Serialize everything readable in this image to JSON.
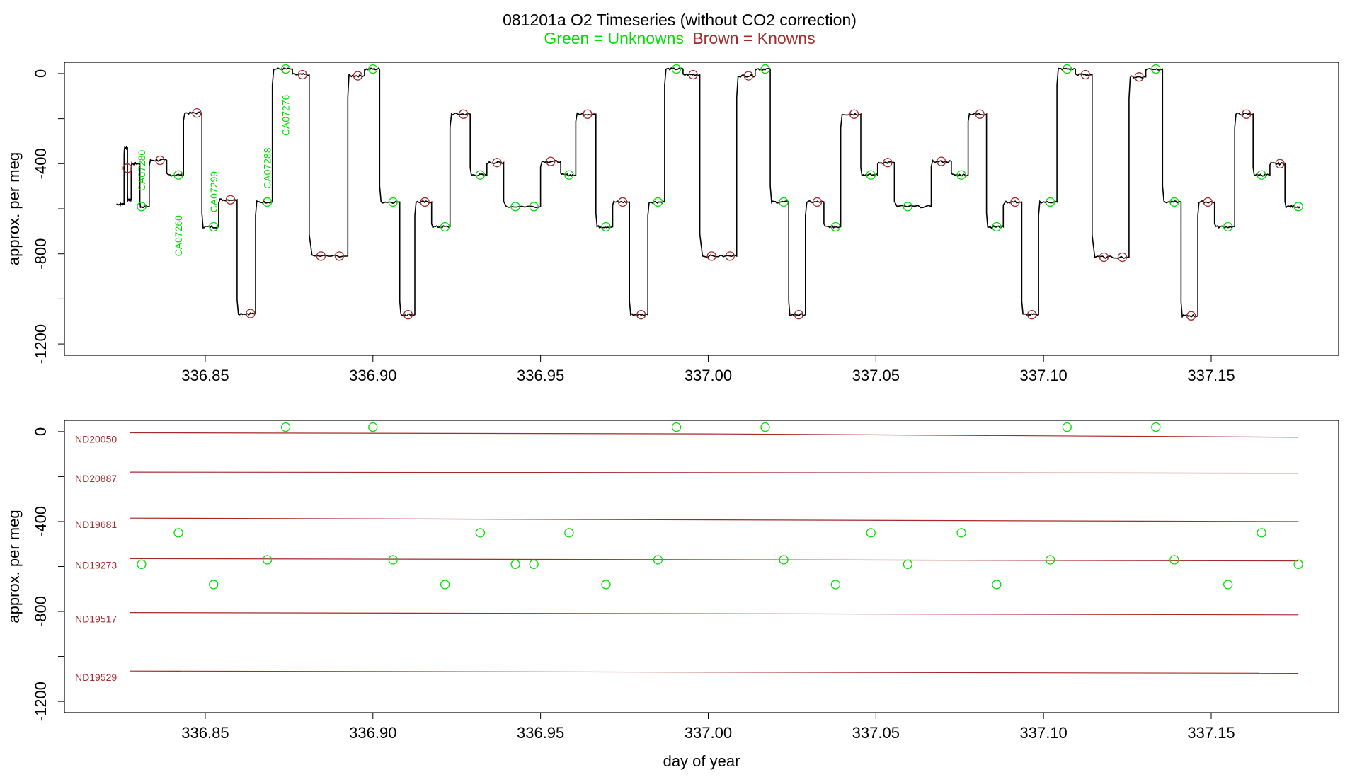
{
  "figure": {
    "title": "081201a   O2 Timeseries (without CO2 correction)",
    "legend_green": "Green = Unknowns",
    "legend_brown": "Brown = Knowns",
    "colors": {
      "unknown": "#00e000",
      "known": "#a52a2a",
      "trace": "#000000"
    }
  },
  "chart_data": [
    {
      "type": "line",
      "panel": "timeseries",
      "title": "081201a   O2 Timeseries (without CO2 correction)",
      "xlabel": "",
      "ylabel": "approx. per meg",
      "xlim": [
        336.808,
        337.188
      ],
      "ylim": [
        -1250,
        50
      ],
      "xticks": [
        "336.85",
        "336.90",
        "336.95",
        "337.00",
        "337.05",
        "337.10",
        "337.15"
      ],
      "yticks": [
        "0",
        "-400",
        "-800",
        "-1200"
      ],
      "grid": false,
      "legend": "top-center",
      "trace_segments": [
        {
          "t0": 336.8235,
          "t1": 336.8258,
          "level": -580
        },
        {
          "t0": 336.8258,
          "t1": 336.8268,
          "level": -330
        },
        {
          "t0": 336.8268,
          "t1": 336.8279,
          "level": -560
        },
        {
          "t0": 336.8279,
          "t1": 336.8305,
          "level": -400
        },
        {
          "t0": 336.8305,
          "t1": 336.8333,
          "level": -590
        },
        {
          "t0": 336.8333,
          "t1": 336.8385,
          "level": -385
        },
        {
          "t0": 336.8385,
          "t1": 336.8435,
          "level": -450
        },
        {
          "t0": 336.8435,
          "t1": 336.849,
          "level": -175
        },
        {
          "t0": 336.849,
          "t1": 336.854,
          "level": -680
        },
        {
          "t0": 336.854,
          "t1": 336.8595,
          "level": -560
        },
        {
          "t0": 336.8595,
          "t1": 336.865,
          "level": -1065
        },
        {
          "t0": 336.865,
          "t1": 336.87,
          "level": -570
        },
        {
          "t0": 336.87,
          "t1": 336.876,
          "level": 20
        },
        {
          "t0": 336.876,
          "t1": 336.881,
          "level": -5
        },
        {
          "t0": 336.881,
          "t1": 336.8925,
          "level": -810
        },
        {
          "t0": 336.8925,
          "t1": 336.8975,
          "level": -10
        },
        {
          "t0": 336.8975,
          "t1": 336.902,
          "level": 20
        },
        {
          "t0": 336.902,
          "t1": 336.908,
          "level": -570
        },
        {
          "t0": 336.908,
          "t1": 336.9125,
          "level": -1070
        },
        {
          "t0": 336.9125,
          "t1": 336.9175,
          "level": -570
        },
        {
          "t0": 336.9175,
          "t1": 336.923,
          "level": -680
        },
        {
          "t0": 336.923,
          "t1": 336.929,
          "level": -180
        },
        {
          "t0": 336.929,
          "t1": 336.934,
          "level": -450
        },
        {
          "t0": 336.934,
          "t1": 336.939,
          "level": -395
        },
        {
          "t0": 336.939,
          "t1": 336.95,
          "level": -590
        },
        {
          "t0": 336.95,
          "t1": 336.956,
          "level": -390
        },
        {
          "t0": 336.956,
          "t1": 336.9605,
          "level": -450
        },
        {
          "t0": 336.9605,
          "t1": 336.9665,
          "level": -180
        },
        {
          "t0": 336.9665,
          "t1": 336.9715,
          "level": -680
        },
        {
          "t0": 336.9715,
          "t1": 336.9765,
          "level": -570
        },
        {
          "t0": 336.9765,
          "t1": 336.982,
          "level": -1070
        },
        {
          "t0": 336.982,
          "t1": 336.987,
          "level": -570
        },
        {
          "t0": 336.987,
          "t1": 336.9925,
          "level": 20
        },
        {
          "t0": 336.9925,
          "t1": 336.9975,
          "level": -5
        },
        {
          "t0": 336.9975,
          "t1": 337.0085,
          "level": -810
        },
        {
          "t0": 337.0085,
          "t1": 337.014,
          "level": -10
        },
        {
          "t0": 337.014,
          "t1": 337.0185,
          "level": 20
        },
        {
          "t0": 337.0185,
          "t1": 337.024,
          "level": -570
        },
        {
          "t0": 337.024,
          "t1": 337.029,
          "level": -1070
        },
        {
          "t0": 337.029,
          "t1": 337.0345,
          "level": -570
        },
        {
          "t0": 337.0345,
          "t1": 337.0395,
          "level": -680
        },
        {
          "t0": 337.0395,
          "t1": 337.0455,
          "level": -180
        },
        {
          "t0": 337.0455,
          "t1": 337.0505,
          "level": -450
        },
        {
          "t0": 337.0505,
          "t1": 337.0555,
          "level": -395
        },
        {
          "t0": 337.0555,
          "t1": 337.0665,
          "level": -590
        },
        {
          "t0": 337.0665,
          "t1": 337.0725,
          "level": -390
        },
        {
          "t0": 337.0725,
          "t1": 337.0775,
          "level": -450
        },
        {
          "t0": 337.0775,
          "t1": 337.083,
          "level": -180
        },
        {
          "t0": 337.083,
          "t1": 337.088,
          "level": -680
        },
        {
          "t0": 337.088,
          "t1": 337.0935,
          "level": -570
        },
        {
          "t0": 337.0935,
          "t1": 337.0985,
          "level": -1070
        },
        {
          "t0": 337.0985,
          "t1": 337.104,
          "level": -570
        },
        {
          "t0": 337.104,
          "t1": 337.1095,
          "level": 20
        },
        {
          "t0": 337.1095,
          "t1": 337.1145,
          "level": -5
        },
        {
          "t0": 337.1145,
          "t1": 337.1255,
          "level": -815
        },
        {
          "t0": 337.1255,
          "t1": 337.1305,
          "level": -15
        },
        {
          "t0": 337.1305,
          "t1": 337.1355,
          "level": 20
        },
        {
          "t0": 337.1355,
          "t1": 337.141,
          "level": -570
        },
        {
          "t0": 337.141,
          "t1": 337.146,
          "level": -1075
        },
        {
          "t0": 337.146,
          "t1": 337.151,
          "level": -570
        },
        {
          "t0": 337.151,
          "t1": 337.157,
          "level": -680
        },
        {
          "t0": 337.157,
          "t1": 337.1625,
          "level": -180
        },
        {
          "t0": 337.1625,
          "t1": 337.1675,
          "level": -450
        },
        {
          "t0": 337.1675,
          "t1": 337.172,
          "level": -400
        },
        {
          "t0": 337.172,
          "t1": 337.1765,
          "level": -590
        }
      ],
      "known_points": [
        {
          "x": 336.8268,
          "y": -420
        },
        {
          "x": 336.8365,
          "y": -385
        },
        {
          "x": 336.8475,
          "y": -175
        },
        {
          "x": 336.8575,
          "y": -560
        },
        {
          "x": 336.8635,
          "y": -1065
        },
        {
          "x": 336.879,
          "y": -5
        },
        {
          "x": 336.8845,
          "y": -810
        },
        {
          "x": 336.89,
          "y": -810
        },
        {
          "x": 336.8955,
          "y": -10
        },
        {
          "x": 336.9105,
          "y": -1070
        },
        {
          "x": 336.9155,
          "y": -570
        },
        {
          "x": 336.927,
          "y": -180
        },
        {
          "x": 336.937,
          "y": -395
        },
        {
          "x": 336.953,
          "y": -390
        },
        {
          "x": 336.964,
          "y": -180
        },
        {
          "x": 336.9745,
          "y": -570
        },
        {
          "x": 336.98,
          "y": -1070
        },
        {
          "x": 336.9955,
          "y": -5
        },
        {
          "x": 337.001,
          "y": -810
        },
        {
          "x": 337.0065,
          "y": -810
        },
        {
          "x": 337.012,
          "y": -10
        },
        {
          "x": 337.027,
          "y": -1070
        },
        {
          "x": 337.0325,
          "y": -570
        },
        {
          "x": 337.0435,
          "y": -180
        },
        {
          "x": 337.0535,
          "y": -395
        },
        {
          "x": 337.0695,
          "y": -390
        },
        {
          "x": 337.081,
          "y": -180
        },
        {
          "x": 337.0915,
          "y": -570
        },
        {
          "x": 337.0965,
          "y": -1070
        },
        {
          "x": 337.1125,
          "y": -5
        },
        {
          "x": 337.118,
          "y": -815
        },
        {
          "x": 337.1235,
          "y": -815
        },
        {
          "x": 337.1285,
          "y": -15
        },
        {
          "x": 337.144,
          "y": -1075
        },
        {
          "x": 337.149,
          "y": -570
        },
        {
          "x": 337.1605,
          "y": -180
        },
        {
          "x": 337.1705,
          "y": -400
        }
      ],
      "unknown_points": [
        {
          "x": 336.831,
          "y": -590
        },
        {
          "x": 336.842,
          "y": -450
        },
        {
          "x": 336.8525,
          "y": -680
        },
        {
          "x": 336.8685,
          "y": -570
        },
        {
          "x": 336.874,
          "y": 20
        },
        {
          "x": 336.9,
          "y": 20
        },
        {
          "x": 336.906,
          "y": -570
        },
        {
          "x": 336.9215,
          "y": -680
        },
        {
          "x": 336.932,
          "y": -450
        },
        {
          "x": 336.9425,
          "y": -590
        },
        {
          "x": 336.948,
          "y": -590
        },
        {
          "x": 336.9585,
          "y": -450
        },
        {
          "x": 336.9695,
          "y": -680
        },
        {
          "x": 336.985,
          "y": -570
        },
        {
          "x": 336.9905,
          "y": 20
        },
        {
          "x": 337.017,
          "y": 20
        },
        {
          "x": 337.0225,
          "y": -570
        },
        {
          "x": 337.038,
          "y": -680
        },
        {
          "x": 337.0485,
          "y": -450
        },
        {
          "x": 337.0595,
          "y": -590
        },
        {
          "x": 337.0755,
          "y": -450
        },
        {
          "x": 337.086,
          "y": -680
        },
        {
          "x": 337.102,
          "y": -570
        },
        {
          "x": 337.107,
          "y": 20
        },
        {
          "x": 337.1335,
          "y": 20
        },
        {
          "x": 337.139,
          "y": -570
        },
        {
          "x": 337.155,
          "y": -680
        },
        {
          "x": 337.165,
          "y": -450
        },
        {
          "x": 337.176,
          "y": -590
        }
      ],
      "annotations": [
        {
          "text": "CA07280",
          "x": 336.831,
          "y": -430
        },
        {
          "text": "CA07260",
          "x": 336.842,
          "y": -720
        },
        {
          "text": "CA07299",
          "x": 336.8525,
          "y": -525
        },
        {
          "text": "CA07288",
          "x": 336.8685,
          "y": -420
        },
        {
          "text": "CA07276",
          "x": 336.874,
          "y": -185
        }
      ]
    },
    {
      "type": "scatter",
      "panel": "standards",
      "title": "",
      "xlabel": "day of year",
      "ylabel": "approx. per meg",
      "xlim": [
        336.808,
        337.188
      ],
      "ylim": [
        -1250,
        50
      ],
      "xticks": [
        "336.85",
        "336.90",
        "336.95",
        "337.00",
        "337.05",
        "337.10",
        "337.15"
      ],
      "yticks": [
        "0",
        "-400",
        "-800",
        "-1200"
      ],
      "grid": false,
      "standard_lines": [
        {
          "name": "ND20050",
          "points": [
            [
              336.8275,
              -5
            ],
            [
              337.0,
              -10
            ],
            [
              337.176,
              -25
            ]
          ]
        },
        {
          "name": "ND20887",
          "points": [
            [
              336.8275,
              -180
            ],
            [
              337.176,
              -185
            ]
          ]
        },
        {
          "name": "ND19681",
          "points": [
            [
              336.8275,
              -385
            ],
            [
              337.176,
              -400
            ]
          ]
        },
        {
          "name": "ND19273",
          "points": [
            [
              336.8275,
              -565
            ],
            [
              337.176,
              -575
            ]
          ]
        },
        {
          "name": "ND19517",
          "points": [
            [
              336.8275,
              -805
            ],
            [
              337.176,
              -815
            ]
          ]
        },
        {
          "name": "ND19529",
          "points": [
            [
              336.8275,
              -1065
            ],
            [
              337.176,
              -1075
            ]
          ]
        }
      ],
      "unknown_points": [
        {
          "x": 336.831,
          "y": -590
        },
        {
          "x": 336.842,
          "y": -450
        },
        {
          "x": 336.8525,
          "y": -680
        },
        {
          "x": 336.8685,
          "y": -570
        },
        {
          "x": 336.874,
          "y": 20
        },
        {
          "x": 336.9,
          "y": 20
        },
        {
          "x": 336.906,
          "y": -570
        },
        {
          "x": 336.9215,
          "y": -680
        },
        {
          "x": 336.932,
          "y": -450
        },
        {
          "x": 336.9425,
          "y": -590
        },
        {
          "x": 336.948,
          "y": -590
        },
        {
          "x": 336.9585,
          "y": -450
        },
        {
          "x": 336.9695,
          "y": -680
        },
        {
          "x": 336.985,
          "y": -570
        },
        {
          "x": 336.9905,
          "y": 20
        },
        {
          "x": 337.017,
          "y": 20
        },
        {
          "x": 337.0225,
          "y": -570
        },
        {
          "x": 337.038,
          "y": -680
        },
        {
          "x": 337.0485,
          "y": -450
        },
        {
          "x": 337.0595,
          "y": -590
        },
        {
          "x": 337.0755,
          "y": -450
        },
        {
          "x": 337.086,
          "y": -680
        },
        {
          "x": 337.102,
          "y": -570
        },
        {
          "x": 337.107,
          "y": 20
        },
        {
          "x": 337.1335,
          "y": 20
        },
        {
          "x": 337.139,
          "y": -570
        },
        {
          "x": 337.155,
          "y": -680
        },
        {
          "x": 337.165,
          "y": -450
        },
        {
          "x": 337.176,
          "y": -590
        }
      ]
    }
  ]
}
